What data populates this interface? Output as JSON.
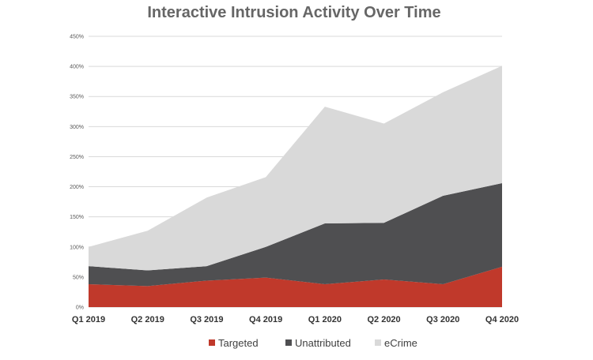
{
  "chart_data": {
    "type": "area",
    "stacked": true,
    "title": "Interactive Intrusion Activity Over Time",
    "xlabel": "",
    "ylabel": "",
    "categories": [
      "Q1 2019",
      "Q2 2019",
      "Q3 2019",
      "Q4 2019",
      "Q1 2020",
      "Q2 2020",
      "Q3 2020",
      "Q4 2020"
    ],
    "yticks": [
      "0%",
      "50%",
      "100%",
      "150%",
      "200%",
      "250%",
      "300%",
      "350%",
      "400%",
      "450%"
    ],
    "ylim": [
      0,
      450
    ],
    "grid": true,
    "legend_position": "bottom",
    "series": [
      {
        "name": "Targeted",
        "color": "#c0392b",
        "values": [
          38,
          35,
          44,
          49,
          38,
          46,
          38,
          67
        ]
      },
      {
        "name": "Unattributed",
        "color": "#4f4f51",
        "values": [
          30,
          26,
          24,
          51,
          101,
          94,
          147,
          139
        ]
      },
      {
        "name": "eCrime",
        "color": "#d9d9d9",
        "values": [
          32,
          66,
          114,
          116,
          194,
          165,
          172,
          195
        ]
      }
    ]
  }
}
